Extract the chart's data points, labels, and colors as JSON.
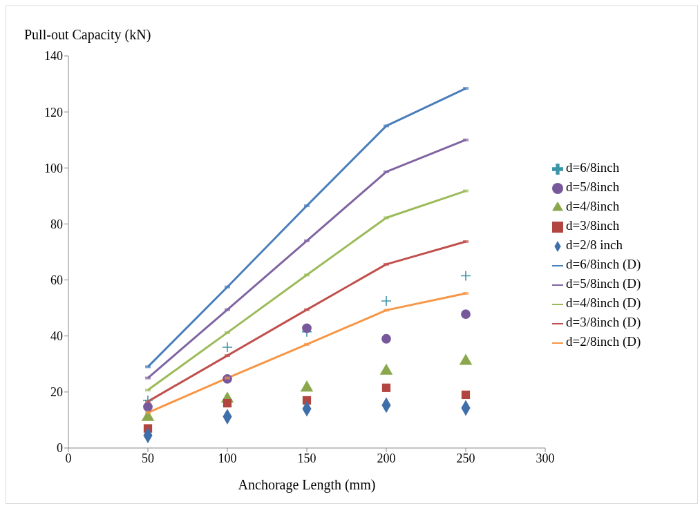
{
  "chart_data": {
    "type": "scatter",
    "xlabel": "Anchorage Length (mm)",
    "ylabel": "Pull-out Capacity (kN)",
    "x": [
      50,
      100,
      150,
      200,
      250
    ],
    "xlim": [
      0,
      300
    ],
    "xticks": [
      0,
      50,
      100,
      150,
      200,
      250,
      300
    ],
    "ylim": [
      0,
      140
    ],
    "yticks": [
      0,
      20,
      40,
      60,
      80,
      100,
      120,
      140
    ],
    "grid": false,
    "legend": "right",
    "series": [
      {
        "name": "d=6/8inch",
        "marker": "cross",
        "color": "#3a95a8",
        "values": [
          17,
          36,
          41.5,
          52.5,
          61.5
        ]
      },
      {
        "name": "d=5/8inch",
        "marker": "circle",
        "color": "#77589a",
        "values": [
          14.7,
          24.7,
          42.8,
          39,
          47.8
        ]
      },
      {
        "name": "d=4/8inch",
        "marker": "triangle",
        "color": "#8aa84b",
        "values": [
          11,
          17.5,
          21.5,
          27.5,
          31
        ]
      },
      {
        "name": "d=3/8inch",
        "marker": "square",
        "color": "#b2453f",
        "values": [
          7,
          16,
          17,
          21.5,
          19
        ]
      },
      {
        "name": "d=2/8 inch",
        "marker": "diamond",
        "color": "#3f6fa8",
        "values": [
          4.5,
          11.2,
          14,
          15.3,
          14.3
        ]
      },
      {
        "name": "d=6/8inch (D)",
        "type": "line",
        "marker": "square",
        "color": "#4a7ebb",
        "values": [
          29,
          57.5,
          86.5,
          115,
          128.4
        ]
      },
      {
        "name": "d=5/8inch (D)",
        "type": "line",
        "marker": "square",
        "color": "#8064a2",
        "values": [
          25,
          49.4,
          74,
          98.6,
          110
        ]
      },
      {
        "name": "d=4/8inch (D)",
        "type": "line",
        "marker": "square",
        "color": "#9bbb59",
        "values": [
          20.7,
          41.2,
          61.8,
          82.2,
          91.8
        ]
      },
      {
        "name": "d=3/8inch (D)",
        "type": "line",
        "marker": "square",
        "color": "#c0504d",
        "values": [
          16.6,
          33,
          49.4,
          65.6,
          73.7
        ]
      },
      {
        "name": "d=2/8inch (D)",
        "type": "line",
        "marker": "square",
        "color": "#f79646",
        "values": [
          12.6,
          25,
          37,
          49.2,
          55.2
        ]
      }
    ]
  }
}
